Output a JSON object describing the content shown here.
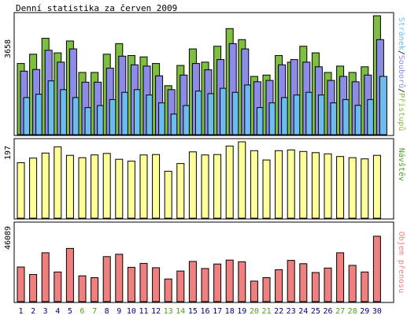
{
  "title": "Denní statistika za červen 2009",
  "colors": {
    "pristupu": "#7fbf3f",
    "souboru": "#8c8ce8",
    "stranek": "#6cbcf0",
    "navstev": "#ffff99",
    "objem": "#f08080",
    "weekend_label": "#4c9f1f",
    "weekday_label": "#00007f",
    "frame": "#000000"
  },
  "side_labels": {
    "stranek": "Stránek",
    "souboru": "Souborů",
    "pristupu": "Přístupů",
    "navstev": "Návštěv",
    "objem": "Objem přenosu",
    "sep": "/"
  },
  "chart_data": [
    {
      "type": "bar",
      "panel": "hits",
      "ymax_label": "3658",
      "ylim": [
        0,
        3658
      ],
      "categories": [
        "1",
        "2",
        "3",
        "4",
        "5",
        "6",
        "7",
        "8",
        "9",
        "10",
        "11",
        "12",
        "13",
        "14",
        "15",
        "16",
        "17",
        "18",
        "19",
        "20",
        "21",
        "22",
        "23",
        "24",
        "25",
        "26",
        "27",
        "28",
        "29",
        "30"
      ],
      "weekend": [
        6,
        7,
        13,
        14,
        20,
        21,
        27,
        28
      ],
      "series": [
        {
          "name": "Přístupů",
          "values": [
            2190,
            2475,
            2964,
            2516,
            2883,
            1914,
            1914,
            2475,
            2801,
            2434,
            2393,
            2190,
            1507,
            2129,
            2639,
            2231,
            2720,
            3262,
            2923,
            1792,
            1833,
            2434,
            2231,
            2720,
            2516,
            1914,
            2109,
            1914,
            2088,
            3658
          ]
        },
        {
          "name": "Souborů",
          "values": [
            1956,
            2007,
            2598,
            2231,
            2638,
            1615,
            1616,
            2047,
            2416,
            2149,
            2109,
            1813,
            1385,
            1833,
            2190,
            1996,
            2312,
            2801,
            2638,
            1629,
            1669,
            2149,
            2312,
            2231,
            2088,
            1669,
            1792,
            1629,
            1833,
            2923
          ]
        },
        {
          "name": "Stránek",
          "values": [
            1141,
            1244,
            1654,
            1386,
            1141,
            834,
            897,
            1081,
            1303,
            1386,
            1222,
            978,
            634,
            897,
            1341,
            1263,
            1426,
            1303,
            1528,
            834,
            978,
            1141,
            1222,
            1304,
            1222,
            978,
            1081,
            904,
            1081,
            1792
          ]
        }
      ]
    },
    {
      "type": "bar",
      "panel": "visits",
      "ymax_label": "197",
      "ylim": [
        0,
        197
      ],
      "series": [
        {
          "name": "Návštěv",
          "values": [
            143,
            155,
            168,
            184,
            162,
            156,
            163,
            167,
            152,
            147,
            163,
            164,
            121,
            141,
            171,
            163,
            164,
            186,
            197,
            174,
            150,
            174,
            176,
            172,
            169,
            166,
            159,
            156,
            153,
            162
          ]
        }
      ]
    },
    {
      "type": "bar",
      "panel": "volume",
      "ymax_label": "46089",
      "ylim": [
        0,
        46089
      ],
      "series": [
        {
          "name": "Objem přenosu",
          "values": [
            20900,
            16400,
            29500,
            17900,
            32100,
            15600,
            14500,
            27200,
            28600,
            20700,
            23100,
            20500,
            13700,
            18500,
            24300,
            20000,
            22700,
            25100,
            24100,
            12400,
            14500,
            19300,
            24900,
            22900,
            17600,
            20300,
            29500,
            21900,
            17900,
            39500
          ]
        }
      ]
    }
  ]
}
